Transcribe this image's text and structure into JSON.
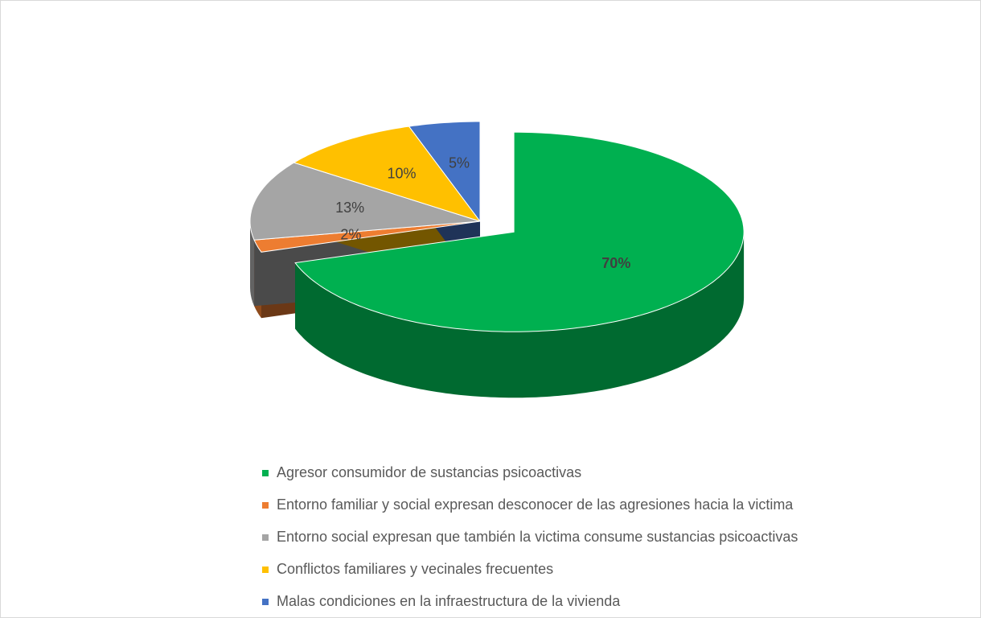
{
  "chart_data": {
    "type": "pie",
    "categories": [
      "Agresor consumidor de sustancias psicoactivas",
      "Entorno familiar y social expresan desconocer de las agresiones hacia la victima",
      "Entorno social expresan que también la victima consume sustancias psicoactivas",
      "Conflictos familiares y vecinales frecuentes",
      "Malas condiciones en la infraestructura de la vivienda"
    ],
    "values": [
      70,
      2,
      13,
      10,
      5
    ],
    "value_labels": [
      "70%",
      "2%",
      "13%",
      "10%",
      "5%"
    ],
    "colors": [
      "#00b050",
      "#ed7d31",
      "#a5a5a5",
      "#ffc000",
      "#4472c4"
    ],
    "legend": "bottom"
  }
}
